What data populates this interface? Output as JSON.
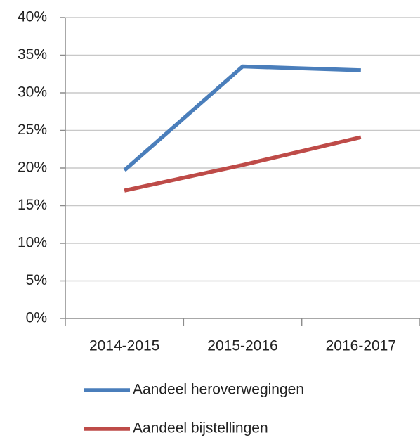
{
  "chart_data": {
    "type": "line",
    "categories": [
      "2014-2015",
      "2015-2016",
      "2016-2017"
    ],
    "series": [
      {
        "name": "Aandeel heroverwegingen",
        "color": "#4a7ebb",
        "values": [
          19.7,
          33.5,
          33.0
        ]
      },
      {
        "name": "Aandeel bijstellingen",
        "color": "#be4b48",
        "values": [
          17.0,
          20.4,
          24.1
        ]
      }
    ],
    "ylim": [
      0,
      40
    ],
    "yticks": [
      {
        "value": 0,
        "label": "0%"
      },
      {
        "value": 5,
        "label": "5%"
      },
      {
        "value": 10,
        "label": "10%"
      },
      {
        "value": 15,
        "label": "15%"
      },
      {
        "value": 20,
        "label": "20%"
      },
      {
        "value": 25,
        "label": "25%"
      },
      {
        "value": 30,
        "label": "30%"
      },
      {
        "value": 35,
        "label": "35%"
      },
      {
        "value": 40,
        "label": "40%"
      }
    ],
    "grid": true,
    "legend": "bottom"
  }
}
